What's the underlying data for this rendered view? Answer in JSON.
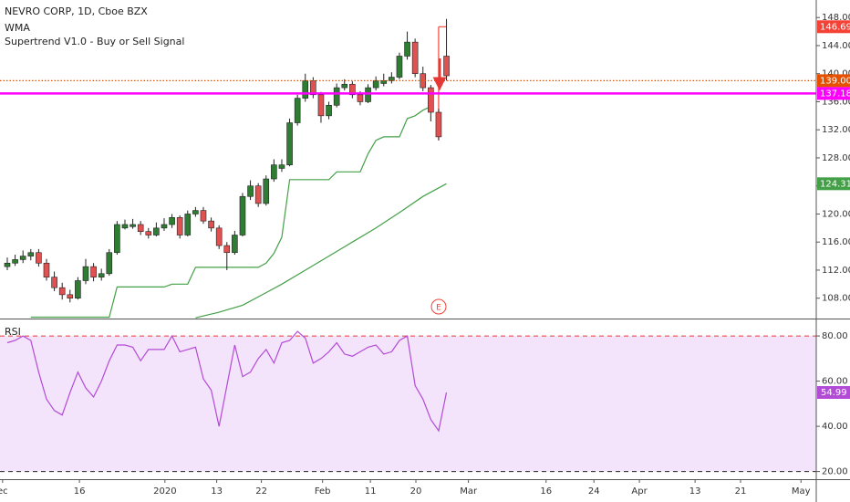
{
  "chart_data": {
    "type": "candlestick",
    "title": "NEVRO CORP, 1D, Cboe BZX",
    "earnings_label": "E",
    "ylim": [
      105.1,
      150.5
    ],
    "yticks": [
      {
        "value": 148,
        "label": "148.00"
      },
      {
        "value": 144,
        "label": "144.00"
      },
      {
        "value": 140,
        "label": "140.00"
      },
      {
        "value": 136,
        "label": "136.00"
      },
      {
        "value": 132,
        "label": "132.00"
      },
      {
        "value": 128,
        "label": "128.00"
      },
      {
        "value": 124,
        "label": "124.00"
      },
      {
        "value": 120,
        "label": "120.00"
      },
      {
        "value": 116,
        "label": "116.00"
      },
      {
        "value": 112,
        "label": "112.00"
      },
      {
        "value": 108,
        "label": "108.00"
      }
    ],
    "xlim": [
      -0.93,
      103.15
    ],
    "xticks": [
      {
        "value": -0.6,
        "label": "ec"
      },
      {
        "value": 9.2,
        "label": "16"
      },
      {
        "value": 20.1,
        "label": "2020"
      },
      {
        "value": 26.7,
        "label": "13"
      },
      {
        "value": 32.4,
        "label": "22"
      },
      {
        "value": 40.2,
        "label": "Feb"
      },
      {
        "value": 46.3,
        "label": "11"
      },
      {
        "value": 52.1,
        "label": "20"
      },
      {
        "value": 58.8,
        "label": "Mar"
      },
      {
        "value": 68.7,
        "label": "16"
      },
      {
        "value": 74.8,
        "label": "24"
      },
      {
        "value": 80.6,
        "label": "Apr"
      },
      {
        "value": 87.7,
        "label": "13"
      },
      {
        "value": 93.5,
        "label": "21"
      },
      {
        "value": 101.2,
        "label": "May"
      }
    ],
    "up_color": "#2e7d32",
    "down_color": "#e05252",
    "candles": [
      [
        112.5,
        113.8,
        112,
        113
      ],
      [
        113,
        114.2,
        112.6,
        113.5
      ],
      [
        113.5,
        114.8,
        113,
        114
      ],
      [
        114,
        115,
        113.4,
        114.5
      ],
      [
        114.5,
        115,
        112.5,
        113
      ],
      [
        113,
        113.6,
        110.5,
        111
      ],
      [
        111,
        111.8,
        109,
        109.5
      ],
      [
        109.5,
        110.2,
        107.8,
        108.5
      ],
      [
        108.5,
        109.2,
        107.4,
        108
      ],
      [
        108,
        111,
        107.8,
        110.5
      ],
      [
        110.5,
        113.6,
        110,
        112.5
      ],
      [
        112.5,
        113,
        110.4,
        111
      ],
      [
        111,
        112.2,
        110.5,
        111.5
      ],
      [
        111.5,
        115,
        111.2,
        114.5
      ],
      [
        114.5,
        119,
        114.2,
        118.5
      ],
      [
        118,
        119.2,
        117.8,
        118.5
      ],
      [
        118.2,
        119.3,
        117.9,
        118.5
      ],
      [
        118.5,
        119,
        117,
        117.5
      ],
      [
        117.5,
        118,
        116.5,
        117
      ],
      [
        117,
        118.8,
        116.8,
        118
      ],
      [
        118,
        119.4,
        117.6,
        118.5
      ],
      [
        118.5,
        120,
        118,
        119.5
      ],
      [
        119.5,
        119.8,
        116.5,
        117
      ],
      [
        117,
        120.5,
        116.8,
        120
      ],
      [
        120,
        121,
        119.6,
        120.5
      ],
      [
        120.5,
        121,
        118.6,
        119
      ],
      [
        119,
        119.5,
        117.5,
        118
      ],
      [
        118,
        118.4,
        115,
        115.5
      ],
      [
        115.5,
        116,
        112,
        114.5
      ],
      [
        114.5,
        117.6,
        114.2,
        117
      ],
      [
        117,
        123,
        116.8,
        122.5
      ],
      [
        122.5,
        124.8,
        122,
        124
      ],
      [
        124,
        124.4,
        121,
        121.5
      ],
      [
        121.5,
        125.5,
        121.2,
        125
      ],
      [
        125,
        127.8,
        124.6,
        127
      ],
      [
        126.5,
        127.8,
        126,
        127
      ],
      [
        127,
        133.6,
        126.8,
        133
      ],
      [
        133,
        137,
        132.6,
        136.5
      ],
      [
        136.5,
        140,
        136,
        139
      ],
      [
        139,
        139.5,
        136.5,
        137
      ],
      [
        137,
        137.4,
        133,
        134
      ],
      [
        134,
        136,
        133.5,
        135.5
      ],
      [
        135.5,
        138.6,
        135.2,
        138
      ],
      [
        138,
        139.2,
        137.6,
        138.5
      ],
      [
        138.5,
        138.9,
        136.5,
        137
      ],
      [
        137,
        137.5,
        135.5,
        136
      ],
      [
        136,
        138.5,
        135.8,
        138
      ],
      [
        138,
        139.6,
        137.6,
        139
      ],
      [
        138.6,
        140,
        138.2,
        139
      ],
      [
        139,
        140.2,
        138.6,
        139.5
      ],
      [
        139.5,
        143,
        139.2,
        142.5
      ],
      [
        142.5,
        146,
        142,
        144.5
      ],
      [
        144.5,
        145,
        139.5,
        140
      ],
      [
        140,
        141,
        137.5,
        138
      ],
      [
        138,
        138.4,
        133.2,
        134.5
      ],
      [
        134.5,
        135,
        130.5,
        131
      ],
      [
        142.5,
        147.8,
        139,
        139.7
      ]
    ],
    "series": [
      {
        "name": "WMA",
        "color": "#43a047",
        "x": [
          24,
          27,
          30,
          33,
          35,
          38,
          41,
          44,
          47,
          50,
          53,
          56
        ],
        "values": [
          105.2,
          106,
          107,
          108.8,
          110,
          112,
          114,
          116,
          118,
          120.2,
          122.5,
          124.31
        ]
      },
      {
        "name": "Supertrend V1.0 - Buy or Sell Signal",
        "color": "#43a047",
        "x": [
          3,
          13,
          14,
          20,
          21,
          23,
          24,
          32,
          33,
          34,
          35,
          36,
          41,
          42,
          45,
          46,
          47,
          48,
          50,
          51,
          52,
          53,
          54
        ],
        "values": [
          105.3,
          105.3,
          109.6,
          109.6,
          110,
          110,
          112.4,
          112.4,
          113,
          114.4,
          116.7,
          124.9,
          124.9,
          126,
          126,
          128.6,
          130.5,
          131,
          131,
          133.6,
          134,
          134.8,
          135.3
        ],
        "signal": {
          "color": "#f44336",
          "x": [
            55,
            56
          ],
          "values": [
            146.69,
            146.69
          ]
        }
      }
    ],
    "hlines": [
      {
        "value": 139,
        "label": "139.00",
        "color": "#e65100",
        "style": "dotted"
      },
      {
        "value": 137.18,
        "color": "#ff00ff",
        "style": "solid"
      }
    ],
    "price_labels": [
      {
        "value": 146.69,
        "color": "#f44336"
      },
      {
        "value": 124.31,
        "color": "#43a047"
      }
    ],
    "rsi": {
      "name": "RSI",
      "color": "#b24bd6",
      "band_color": "#f4e4fb",
      "ylim": [
        16.6,
        87.3
      ],
      "yticks": [
        {
          "value": 80,
          "label": "80.00"
        },
        {
          "value": 60,
          "label": "60.00"
        },
        {
          "value": 40,
          "label": "40.00"
        },
        {
          "value": 20,
          "label": "20.00"
        }
      ],
      "band": [
        20,
        80
      ],
      "values": [
        77,
        78,
        80,
        78,
        64,
        52,
        47,
        45,
        55,
        64,
        57,
        53,
        60,
        69,
        76,
        76,
        75,
        69,
        74,
        74,
        74,
        80,
        73,
        74,
        75,
        61,
        56,
        40,
        58,
        76,
        62,
        64,
        70,
        74,
        68,
        77,
        78,
        82,
        79,
        68,
        70,
        73,
        77,
        72,
        71,
        73,
        75,
        76,
        72,
        73,
        78,
        80,
        58,
        52,
        43,
        38,
        54.99
      ]
    }
  }
}
